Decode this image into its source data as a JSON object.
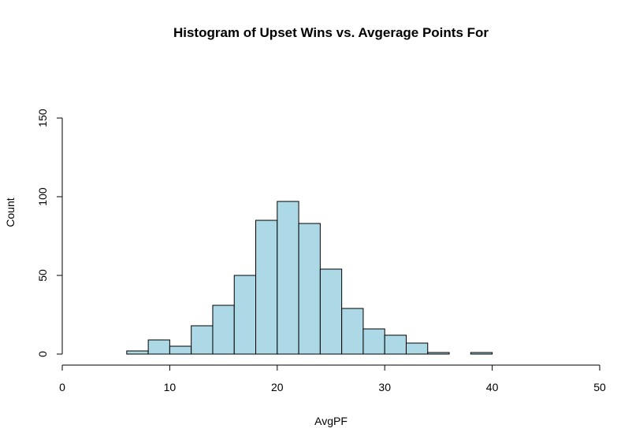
{
  "chart_data": {
    "type": "bar",
    "title": "Histogram of Upset Wins vs. Avgerage Points For",
    "xlabel": "AvgPF",
    "ylabel": "Count",
    "bar_color": "#add8e6",
    "xlim": [
      0,
      50
    ],
    "ylim": [
      0,
      150
    ],
    "x_ticks": [
      "0",
      "10",
      "20",
      "30",
      "40",
      "50"
    ],
    "y_ticks": [
      "0",
      "50",
      "100",
      "150"
    ],
    "bins": [
      {
        "start": 6,
        "end": 8,
        "count": 2
      },
      {
        "start": 8,
        "end": 10,
        "count": 9
      },
      {
        "start": 10,
        "end": 12,
        "count": 5
      },
      {
        "start": 12,
        "end": 14,
        "count": 18
      },
      {
        "start": 14,
        "end": 16,
        "count": 31
      },
      {
        "start": 16,
        "end": 18,
        "count": 50
      },
      {
        "start": 18,
        "end": 20,
        "count": 85
      },
      {
        "start": 20,
        "end": 22,
        "count": 97
      },
      {
        "start": 22,
        "end": 24,
        "count": 83
      },
      {
        "start": 24,
        "end": 26,
        "count": 54
      },
      {
        "start": 26,
        "end": 28,
        "count": 29
      },
      {
        "start": 28,
        "end": 30,
        "count": 16
      },
      {
        "start": 30,
        "end": 32,
        "count": 12
      },
      {
        "start": 32,
        "end": 34,
        "count": 7
      },
      {
        "start": 34,
        "end": 36,
        "count": 1
      },
      {
        "start": 36,
        "end": 38,
        "count": 0
      },
      {
        "start": 38,
        "end": 40,
        "count": 1
      }
    ]
  }
}
